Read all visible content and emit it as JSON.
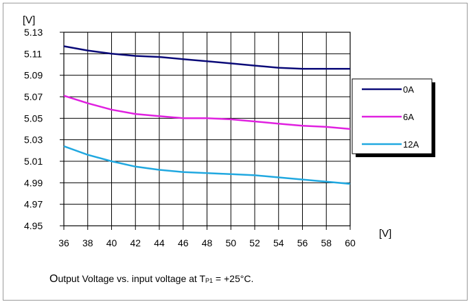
{
  "chart_data": {
    "type": "line",
    "title": "",
    "ylabel": "[V]",
    "xlabel": "[V]",
    "ylim": [
      4.95,
      5.13
    ],
    "xlim": [
      36,
      60
    ],
    "yticks": [
      "4.95",
      "4.97",
      "4.99",
      "5.01",
      "5.03",
      "5.05",
      "5.07",
      "5.09",
      "5.11",
      "5.13"
    ],
    "xticks": [
      "36",
      "38",
      "40",
      "42",
      "44",
      "46",
      "48",
      "50",
      "52",
      "54",
      "56",
      "58",
      "60"
    ],
    "grid": true,
    "legend_position": "right",
    "x": [
      36,
      38,
      40,
      42,
      44,
      46,
      48,
      50,
      52,
      54,
      56,
      58,
      60
    ],
    "series": [
      {
        "name": "0A",
        "color": "#0a0a78",
        "values": [
          5.117,
          5.113,
          5.11,
          5.108,
          5.107,
          5.105,
          5.103,
          5.101,
          5.099,
          5.097,
          5.096,
          5.096,
          5.096
        ]
      },
      {
        "name": "6A",
        "color": "#e020e0",
        "values": [
          5.071,
          5.064,
          5.058,
          5.054,
          5.052,
          5.05,
          5.05,
          5.049,
          5.047,
          5.045,
          5.043,
          5.042,
          5.04
        ]
      },
      {
        "name": "12A",
        "color": "#20a8e0",
        "values": [
          5.024,
          5.016,
          5.01,
          5.005,
          5.002,
          5.0,
          4.999,
          4.998,
          4.997,
          4.995,
          4.993,
          4.991,
          4.989
        ]
      }
    ]
  },
  "caption": {
    "first_letter": "O",
    "text_before_sub": "utput Voltage vs. input voltage at T",
    "subscript": "P1",
    "text_after_sub": " = +25°C."
  }
}
